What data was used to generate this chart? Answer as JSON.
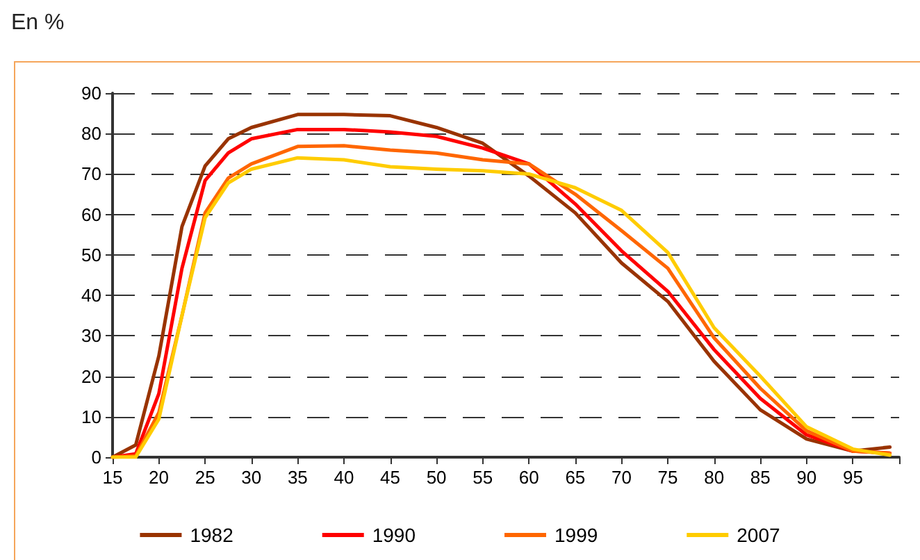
{
  "chart_data": {
    "type": "line",
    "title": "En %",
    "x": [
      15,
      17.5,
      20,
      22.5,
      25,
      27.5,
      30,
      35,
      40,
      45,
      50,
      55,
      60,
      65,
      70,
      75,
      80,
      85,
      90,
      95,
      99
    ],
    "series": [
      {
        "name": "1982",
        "color": "#993300",
        "values": [
          0,
          3,
          25,
          57,
          72,
          78.7,
          81.5,
          84.7,
          84.7,
          84.4,
          81.5,
          77.6,
          69.5,
          60.4,
          48,
          38.5,
          23.7,
          11.7,
          4.5,
          1.5,
          2.5
        ]
      },
      {
        "name": "1990",
        "color": "#ff0000",
        "values": [
          0,
          0.8,
          15.7,
          46.7,
          68.4,
          75.2,
          78.7,
          81,
          81,
          80.4,
          79.3,
          76.4,
          72.5,
          62.6,
          51,
          41,
          26.6,
          14.5,
          5.5,
          1.5,
          1
        ]
      },
      {
        "name": "1999",
        "color": "#ff6600",
        "values": [
          0,
          0.3,
          11,
          35,
          60.4,
          69,
          72.5,
          76.8,
          77,
          75.9,
          75.2,
          73.5,
          72.5,
          65,
          56,
          46.7,
          29.5,
          17,
          6.5,
          1.5,
          1
        ]
      },
      {
        "name": "2007",
        "color": "#ffcc00",
        "values": [
          0,
          0,
          9.4,
          35,
          59.2,
          67.8,
          71.2,
          74,
          73.5,
          71.8,
          71.2,
          70.8,
          70,
          66.6,
          61,
          50.6,
          32,
          20,
          7.5,
          2,
          0.5
        ]
      }
    ],
    "xlim": [
      15,
      100
    ],
    "xticks": [
      15,
      20,
      25,
      30,
      35,
      40,
      45,
      50,
      55,
      60,
      65,
      70,
      75,
      80,
      85,
      90,
      95
    ],
    "ylim": [
      0,
      90
    ],
    "yticks": [
      0,
      10,
      20,
      30,
      40,
      50,
      60,
      70,
      80,
      90
    ],
    "grid": "y",
    "legend": "bottom",
    "marker": "none",
    "line_style": "solid"
  }
}
